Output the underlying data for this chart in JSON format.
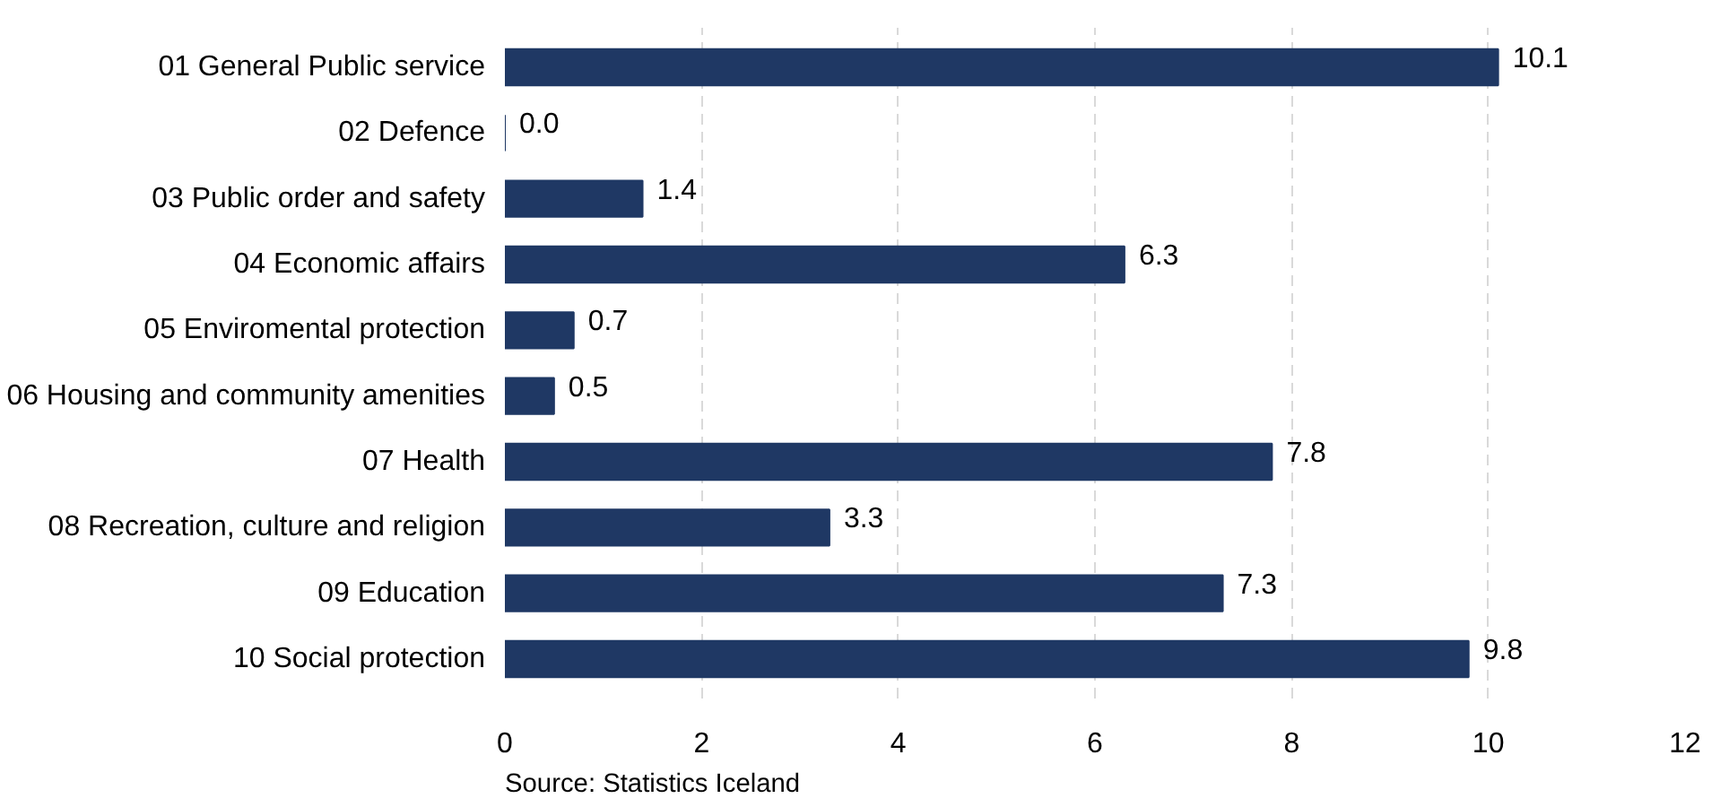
{
  "chart_data": {
    "type": "bar",
    "orientation": "horizontal",
    "categories": [
      "01 General Public service",
      "02 Defence",
      "03 Public order and safety",
      "04 Economic affairs",
      "05 Enviromental protection",
      "06 Housing and community amenities",
      "07 Health",
      "08 Recreation, culture and religion",
      "09 Education",
      "10 Social protection"
    ],
    "values": [
      10.1,
      0.0,
      1.4,
      6.3,
      0.7,
      0.5,
      7.8,
      3.3,
      7.3,
      9.8
    ],
    "color": "#1f3864",
    "value_labels": [
      "10.1",
      "0.0",
      "1.4",
      "6.3",
      "0.7",
      "0.5",
      "7.8",
      "3.3",
      "7.3",
      "9.8"
    ],
    "xlim": [
      0,
      12
    ],
    "xticks": [
      0,
      2,
      4,
      6,
      8,
      10,
      12
    ],
    "grid": "x",
    "annotations": [
      "Source: Statistics Iceland"
    ]
  }
}
